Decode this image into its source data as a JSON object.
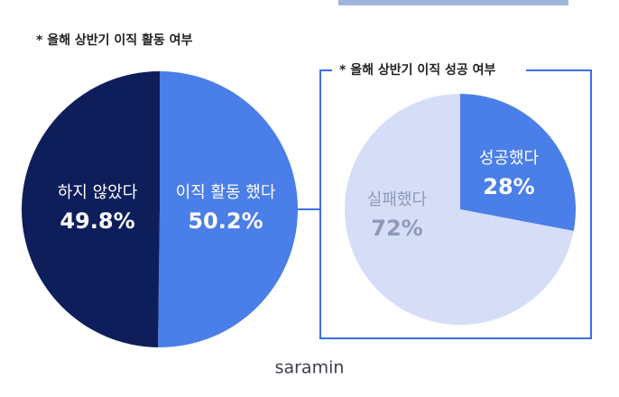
{
  "chart_data": [
    {
      "type": "pie",
      "title": "* 올해 상반기 이직 활동 여부",
      "categories": [
        "이직 활동 했다",
        "하지 않았다"
      ],
      "values": [
        50.2,
        49.8
      ],
      "value_labels": [
        "50.2%",
        "49.8%"
      ],
      "colors": [
        "#4a7ee8",
        "#0e1e5b"
      ],
      "label_colors": [
        "#ffffff",
        "#ffffff"
      ]
    },
    {
      "type": "pie",
      "title": "* 올해 상반기 이직 성공 여부",
      "categories": [
        "성공했다",
        "실패했다"
      ],
      "values": [
        28,
        72
      ],
      "value_labels": [
        "28%",
        "72%"
      ],
      "colors": [
        "#4a7ee8",
        "#d6def7"
      ],
      "label_colors": [
        "#ffffff",
        "#8d9ab9"
      ]
    }
  ],
  "footer": {
    "logo": "saramin"
  }
}
